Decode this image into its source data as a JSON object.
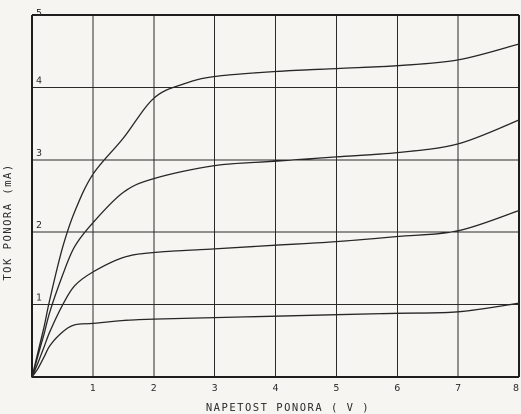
{
  "chart_data": {
    "type": "line",
    "title": "",
    "xlabel": "NAPETOST   PONORA        ( V )",
    "ylabel": "TOK   PONORA        (mA)",
    "xlim": [
      0,
      8
    ],
    "ylim": [
      0,
      5
    ],
    "x_ticks": [
      "1",
      "2",
      "3",
      "4",
      "5",
      "6",
      "7",
      "8"
    ],
    "y_ticks": [
      "1",
      "2",
      "3",
      "4",
      "5"
    ],
    "grid": true,
    "legend": "none",
    "series": [
      {
        "x": [
          0,
          0.1,
          0.2,
          0.3,
          0.5,
          0.7,
          1,
          1.5,
          2,
          3,
          4,
          5,
          6,
          7,
          8
        ],
        "y": [
          0,
          0.12,
          0.28,
          0.44,
          0.62,
          0.72,
          0.74,
          0.78,
          0.8,
          0.82,
          0.84,
          0.86,
          0.88,
          0.9,
          1.02
        ]
      },
      {
        "x": [
          0,
          0.1,
          0.2,
          0.3,
          0.5,
          0.7,
          1,
          1.5,
          2,
          3,
          4,
          5,
          6,
          7,
          8
        ],
        "y": [
          0,
          0.2,
          0.42,
          0.64,
          0.99,
          1.26,
          1.45,
          1.65,
          1.72,
          1.77,
          1.82,
          1.87,
          1.94,
          2.02,
          2.3
        ]
      },
      {
        "x": [
          0,
          0.1,
          0.2,
          0.3,
          0.5,
          0.7,
          1,
          1.5,
          2,
          3,
          4,
          5,
          6,
          7,
          8
        ],
        "y": [
          0,
          0.3,
          0.6,
          0.92,
          1.4,
          1.8,
          2.13,
          2.55,
          2.74,
          2.92,
          2.98,
          3.04,
          3.1,
          3.22,
          3.55
        ]
      },
      {
        "x": [
          0,
          0.1,
          0.2,
          0.3,
          0.5,
          0.7,
          1,
          1.5,
          2,
          2.5,
          3,
          4,
          5,
          6,
          7,
          8
        ],
        "y": [
          0,
          0.35,
          0.7,
          1.1,
          1.78,
          2.28,
          2.8,
          3.3,
          3.85,
          4.05,
          4.15,
          4.22,
          4.26,
          4.3,
          4.38,
          4.6
        ]
      }
    ]
  },
  "colors": {
    "background": "#f6f5f1",
    "line": "#262626",
    "grid": "#2a2a2a"
  }
}
